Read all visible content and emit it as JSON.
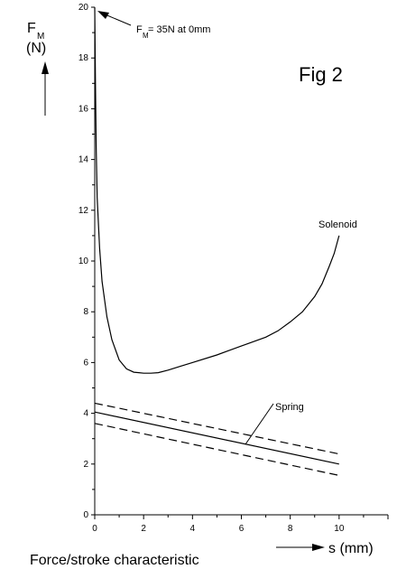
{
  "chart_data": {
    "type": "line",
    "title": "Fig 2",
    "caption": "Force/stroke characteristic",
    "ylabel": {
      "main": "F",
      "subscript": "M",
      "unit": "(N)"
    },
    "xlabel": "s  (mm)",
    "xlim": [
      0,
      12
    ],
    "ylim": [
      0,
      20
    ],
    "x_ticks": [
      0,
      2,
      4,
      6,
      8,
      10
    ],
    "y_ticks": [
      0,
      2,
      4,
      6,
      8,
      10,
      12,
      14,
      16,
      18,
      20
    ],
    "annotation": {
      "prefix": "F",
      "subscript": "M",
      "suffix": " = 35N at 0mm"
    },
    "series": [
      {
        "name": "Solenoid",
        "style": "solid",
        "x": [
          0,
          0.03,
          0.06,
          0.1,
          0.2,
          0.3,
          0.5,
          0.7,
          1.0,
          1.3,
          1.6,
          1.8,
          2.0,
          2.3,
          2.6,
          3.0,
          3.5,
          4.0,
          5.0,
          6.0,
          7.0,
          7.5,
          8.0,
          8.5,
          9.0,
          9.3,
          9.6,
          9.8,
          10.0
        ],
        "y": [
          20,
          17,
          14.5,
          12.5,
          10.5,
          9.2,
          7.8,
          6.9,
          6.1,
          5.75,
          5.62,
          5.6,
          5.58,
          5.58,
          5.6,
          5.7,
          5.85,
          6.0,
          6.3,
          6.65,
          7.0,
          7.25,
          7.6,
          8.0,
          8.6,
          9.1,
          9.8,
          10.3,
          11.0
        ]
      },
      {
        "name": "Spring",
        "style": "solid",
        "x": [
          0,
          10
        ],
        "y": [
          4.05,
          2.0
        ]
      },
      {
        "name": "",
        "style": "dashed",
        "x": [
          0,
          10
        ],
        "y": [
          4.4,
          2.4
        ]
      },
      {
        "name": "",
        "style": "dashed",
        "x": [
          0,
          10
        ],
        "y": [
          3.6,
          1.55
        ]
      }
    ]
  }
}
